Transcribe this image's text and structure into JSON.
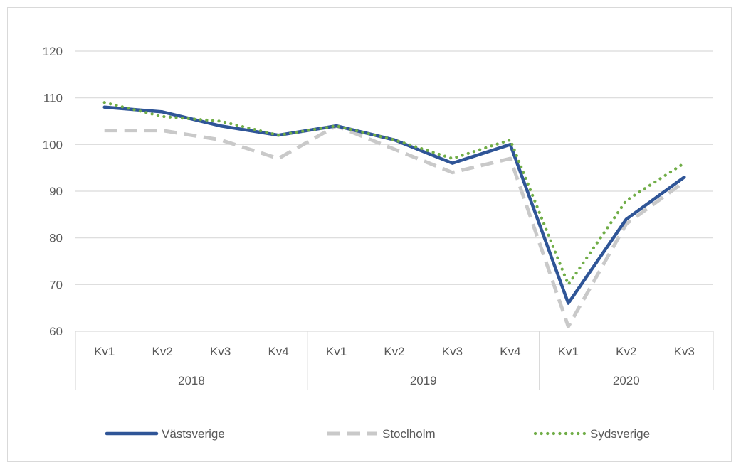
{
  "chart_data": {
    "type": "line",
    "title": "",
    "xlabel": "",
    "ylabel": "",
    "ylim": [
      60,
      120
    ],
    "yticks": [
      60,
      70,
      80,
      90,
      100,
      110,
      120
    ],
    "grid": true,
    "legend_position": "bottom",
    "categories": [
      "Kv1",
      "Kv2",
      "Kv3",
      "Kv4",
      "Kv1",
      "Kv2",
      "Kv3",
      "Kv4",
      "Kv1",
      "Kv2",
      "Kv3"
    ],
    "groups": [
      {
        "label": "2018",
        "count": 4
      },
      {
        "label": "2019",
        "count": 4
      },
      {
        "label": "2020",
        "count": 3
      }
    ],
    "series": [
      {
        "name": "Västsverige",
        "color": "#2f5597",
        "style": "solid",
        "values": [
          108,
          107,
          104,
          102,
          104,
          101,
          96,
          100,
          66,
          84,
          93
        ]
      },
      {
        "name": "Stoclholm",
        "color": "#c9c9c9",
        "style": "dashed",
        "values": [
          103,
          103,
          101,
          97,
          104,
          99,
          94,
          97,
          61,
          83,
          92
        ]
      },
      {
        "name": "Sydsverige",
        "color": "#70ad47",
        "style": "dotted",
        "values": [
          109,
          106,
          105,
          102,
          104,
          101,
          97,
          101,
          70,
          88,
          96
        ]
      }
    ]
  }
}
